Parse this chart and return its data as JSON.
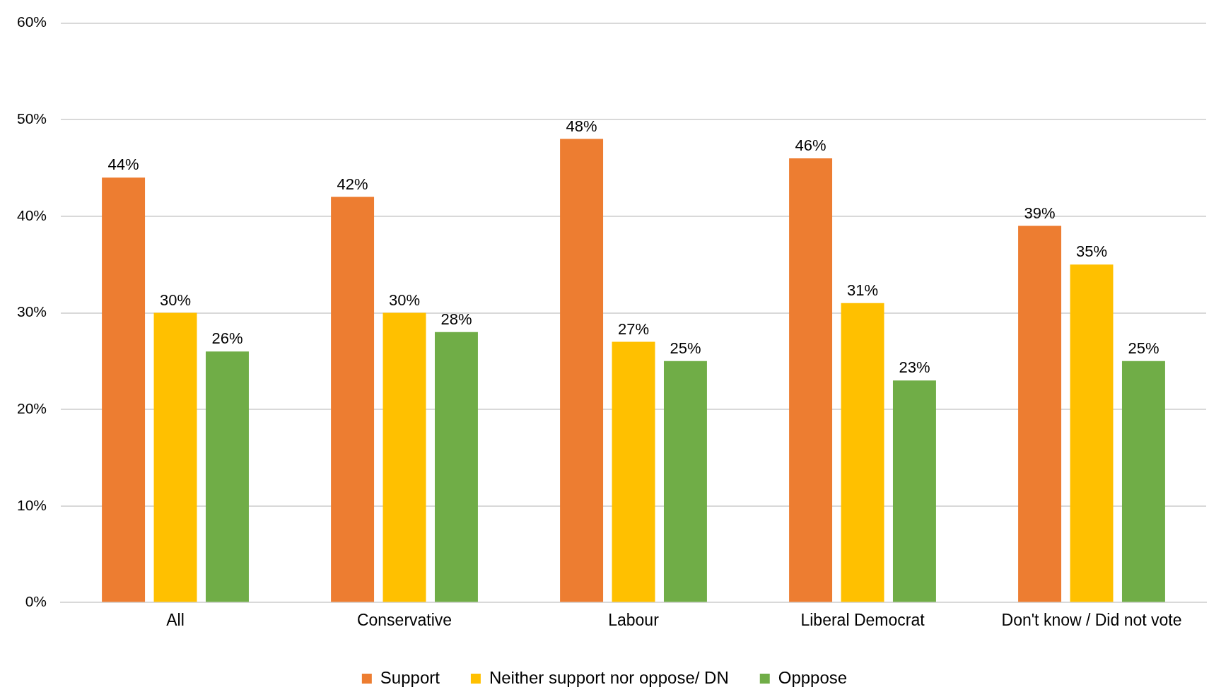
{
  "chart_data": {
    "type": "bar",
    "categories": [
      "All",
      "Conservative",
      "Labour",
      "Liberal Democrat",
      "Don't know / Did not vote"
    ],
    "series": [
      {
        "name": "Support",
        "color": "#ed7d31",
        "values": [
          44,
          42,
          48,
          46,
          39
        ],
        "value_labels": [
          "44%",
          "42%",
          "48%",
          "46%",
          "39%"
        ]
      },
      {
        "name": "Neither support nor oppose/ DN",
        "color": "#ffc000",
        "values": [
          30,
          30,
          27,
          31,
          35
        ],
        "value_labels": [
          "30%",
          "30%",
          "27%",
          "31%",
          "35%"
        ]
      },
      {
        "name": "Opppose",
        "color": "#70ad47",
        "values": [
          26,
          28,
          25,
          23,
          25
        ],
        "value_labels": [
          "26%",
          "28%",
          "25%",
          "23%",
          "25%"
        ]
      }
    ],
    "ylim": [
      0,
      60
    ],
    "yticks": [
      {
        "value": 0,
        "label": "0%"
      },
      {
        "value": 10,
        "label": "10%"
      },
      {
        "value": 20,
        "label": "20%"
      },
      {
        "value": 30,
        "label": "30%"
      },
      {
        "value": 40,
        "label": "40%"
      },
      {
        "value": 50,
        "label": "50%"
      },
      {
        "value": 60,
        "label": "60%"
      }
    ],
    "grid": "y",
    "legend": "bottom"
  }
}
